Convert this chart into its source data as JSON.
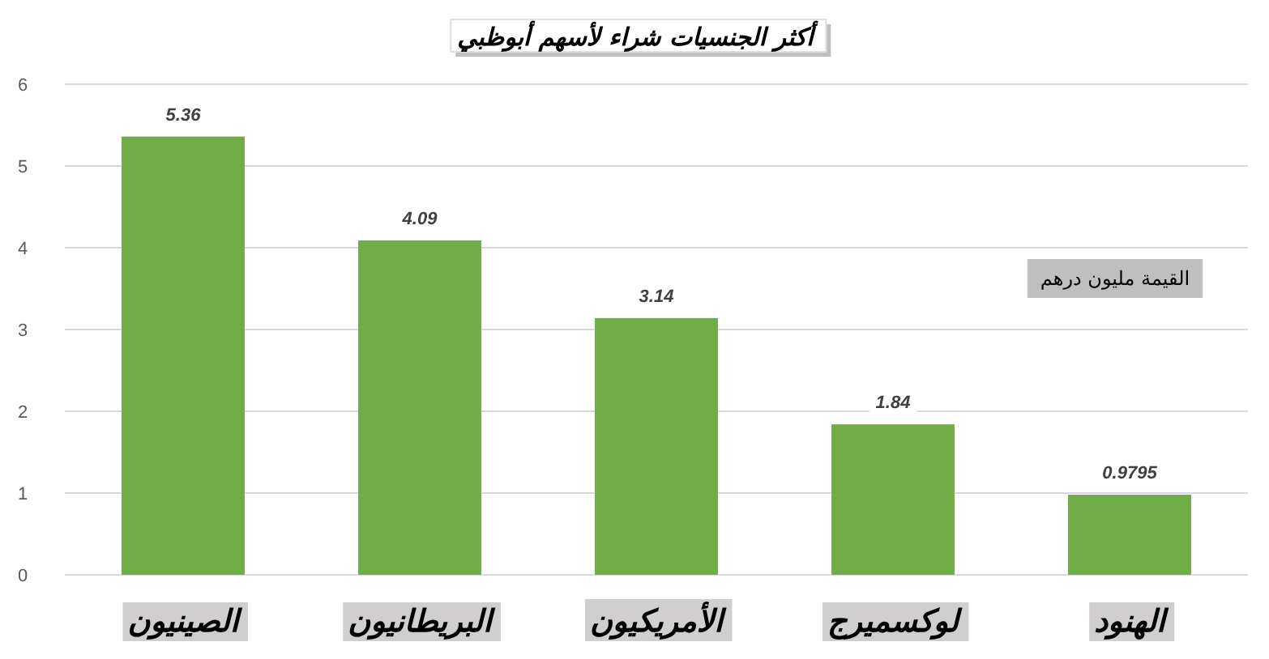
{
  "chart_data": {
    "type": "bar",
    "title": "أكثر الجنسيات شراء لأسهم أبوظبي",
    "categories": [
      "الصينيون",
      "البريطانيون",
      "الأمريكيون",
      "لوكسميرج",
      "الهنود"
    ],
    "values": [
      5.36,
      4.09,
      3.14,
      1.84,
      0.9795
    ],
    "color": "#70ad47",
    "ylim": [
      0,
      6
    ],
    "yticks": [
      0,
      1,
      2,
      3,
      4,
      5,
      6
    ],
    "grid": "y",
    "data_labels": true,
    "annotations": [
      "القيمة مليون درهم"
    ]
  }
}
